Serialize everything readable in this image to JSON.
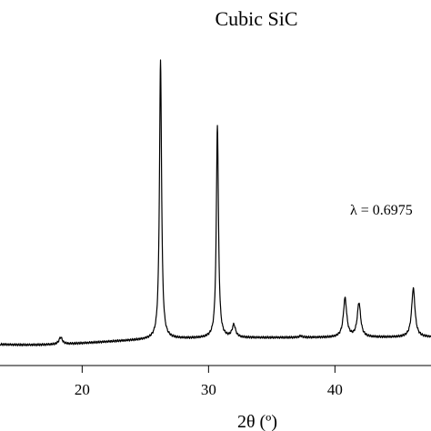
{
  "chart_data": {
    "type": "line",
    "title": "Cubic SiC",
    "annotation": "λ = 0.6975",
    "xlabel": "2θ (º)",
    "ylabel": "",
    "xlim": [
      13.5,
      47.6
    ],
    "ylim": [
      0,
      100
    ],
    "xticks": [
      20,
      30,
      40
    ],
    "xtick_labels": [
      "20",
      "30",
      "40"
    ],
    "series": [
      {
        "color": "#000000",
        "peaks": [
          {
            "x": 18.3,
            "y": 5.9
          },
          {
            "x": 26.2,
            "y": 100.0
          },
          {
            "x": 30.7,
            "y": 77.5
          },
          {
            "x": 32.0,
            "y": 7.8
          },
          {
            "x": 37.3,
            "y": 4.0
          },
          {
            "x": 40.8,
            "y": 17.0
          },
          {
            "x": 41.9,
            "y": 15.3
          },
          {
            "x": 46.2,
            "y": 20.4
          }
        ]
      }
    ]
  }
}
